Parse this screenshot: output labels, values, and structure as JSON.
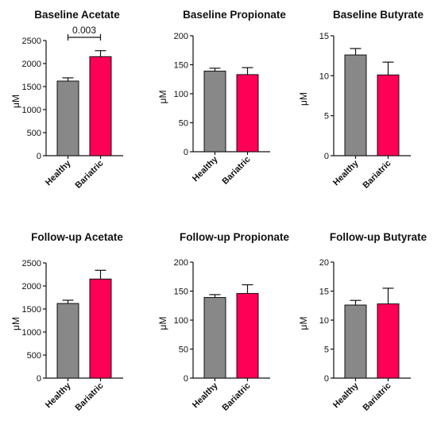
{
  "colors": {
    "healthy": "#888888",
    "bariatric": "#FF0057",
    "axis": "#111111"
  },
  "chart_data": [
    {
      "type": "bar",
      "title": "Baseline Acetate",
      "ylabel": "μM",
      "categories": [
        "Healthy",
        "Bariatric"
      ],
      "values": [
        1620,
        2150
      ],
      "error": [
        70,
        130
      ],
      "ylim": [
        0,
        2500
      ],
      "yticks": [
        "0",
        "500",
        "1000",
        "1500",
        "2000",
        "2500"
      ],
      "yticks_v": [
        0,
        500,
        1000,
        1500,
        2000,
        2500
      ],
      "annotation": "0.003",
      "grid": false
    },
    {
      "type": "bar",
      "title": "Baseline Propionate",
      "ylabel": "μM",
      "categories": [
        "Healthy",
        "Bariatric"
      ],
      "values": [
        139,
        133
      ],
      "error": [
        5,
        12
      ],
      "ylim": [
        0,
        200
      ],
      "yticks": [
        "0",
        "50",
        "100",
        "150",
        "200"
      ],
      "yticks_v": [
        0,
        50,
        100,
        150,
        200
      ],
      "grid": false
    },
    {
      "type": "bar",
      "title": "Baseline Butyrate",
      "ylabel": "μM",
      "categories": [
        "Healthy",
        "Bariatric"
      ],
      "values": [
        12.6,
        10.1
      ],
      "error": [
        0.8,
        1.6
      ],
      "ylim": [
        0,
        15
      ],
      "yticks": [
        "0",
        "5",
        "10",
        "15"
      ],
      "yticks_v": [
        0,
        5,
        10,
        15
      ],
      "grid": false
    },
    {
      "type": "bar",
      "title": "Follow-up Acetate",
      "ylabel": "μM",
      "categories": [
        "Healthy",
        "Bariatric"
      ],
      "values": [
        1620,
        2150
      ],
      "error": [
        70,
        190
      ],
      "ylim": [
        0,
        2500
      ],
      "yticks": [
        "0",
        "500",
        "1000",
        "1500",
        "2000",
        "2500"
      ],
      "yticks_v": [
        0,
        500,
        1000,
        1500,
        2000,
        2500
      ],
      "grid": false
    },
    {
      "type": "bar",
      "title": "Follow-up Propionate",
      "ylabel": "μM",
      "categories": [
        "Healthy",
        "Bariatric"
      ],
      "values": [
        139,
        146
      ],
      "error": [
        5,
        15
      ],
      "ylim": [
        0,
        200
      ],
      "yticks": [
        "0",
        "50",
        "100",
        "150",
        "200"
      ],
      "yticks_v": [
        0,
        50,
        100,
        150,
        200
      ],
      "grid": false
    },
    {
      "type": "bar",
      "title": "Follow-up Butyrate",
      "ylabel": "μM",
      "categories": [
        "Healthy",
        "Bariatric"
      ],
      "values": [
        12.6,
        12.8
      ],
      "error": [
        0.8,
        2.7
      ],
      "ylim": [
        0,
        20
      ],
      "yticks": [
        "0",
        "5",
        "10",
        "15",
        "20"
      ],
      "yticks_v": [
        0,
        5,
        10,
        15,
        20
      ],
      "grid": false
    }
  ]
}
